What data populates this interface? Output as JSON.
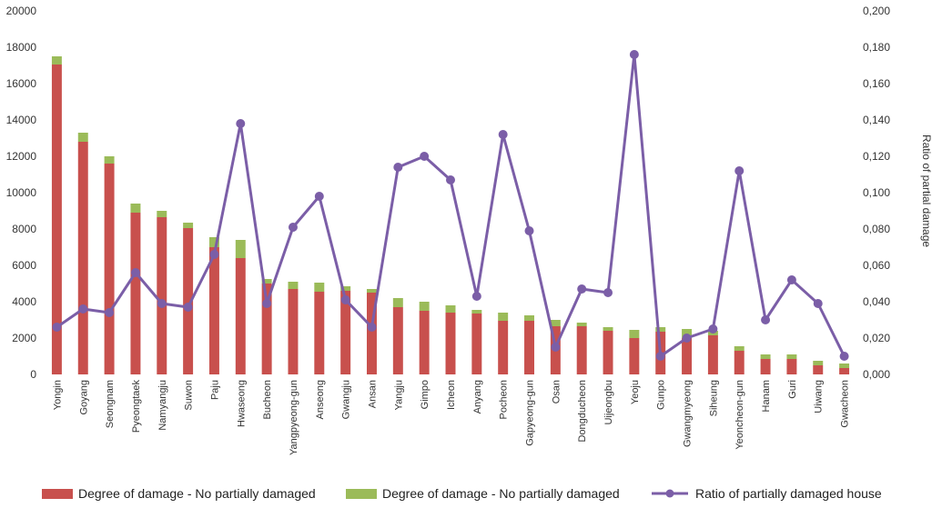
{
  "chart_data": {
    "type": "bar",
    "stacked": true,
    "categories": [
      "Yongin",
      "Goyang",
      "Seongnam",
      "Pyeongtaek",
      "Namyangju",
      "Suwon",
      "Paju",
      "Hwaseong",
      "Bucheon",
      "Yangpyeong-gun",
      "Anseong",
      "Gwangju",
      "Ansan",
      "Yangju",
      "Gimpo",
      "Icheon",
      "Anyang",
      "Pocheon",
      "Gapyeong-gun",
      "Osan",
      "Dongducheon",
      "Uijeongbu",
      "Yeoju",
      "Gunpo",
      "Gwangmyeong",
      "Siheung",
      "Yeoncheon-gun",
      "Hanam",
      "Guri",
      "Uiwang",
      "Gwacheon"
    ],
    "series": [
      {
        "name": "Degree of damage - No partially damaged",
        "color": "#c8504d",
        "values": [
          17050,
          12800,
          11600,
          8900,
          8650,
          8050,
          7000,
          6400,
          5000,
          4700,
          4550,
          4600,
          4500,
          3700,
          3500,
          3400,
          3350,
          2950,
          2950,
          2650,
          2650,
          2400,
          2000,
          2350,
          2000,
          2150,
          1300,
          850,
          850,
          500,
          350
        ]
      },
      {
        "name": "Degree of damage - No partially damaged",
        "color": "#9bbb59",
        "values": [
          450,
          500,
          400,
          500,
          350,
          300,
          550,
          1000,
          250,
          400,
          500,
          250,
          200,
          500,
          500,
          400,
          200,
          450,
          300,
          350,
          200,
          200,
          450,
          250,
          500,
          250,
          250,
          250,
          250,
          250,
          250
        ]
      }
    ],
    "line": {
      "name": "Ratio of partially damaged house",
      "color": "#7b5ea7",
      "values": [
        0.026,
        0.036,
        0.034,
        0.056,
        0.039,
        0.037,
        0.066,
        0.138,
        0.039,
        0.081,
        0.098,
        0.041,
        0.026,
        0.114,
        0.12,
        0.107,
        0.043,
        0.132,
        0.079,
        0.015,
        0.047,
        0.045,
        0.176,
        0.01,
        0.02,
        0.025,
        0.112,
        0.03,
        0.052,
        0.039,
        0.01
      ]
    },
    "y_left": {
      "min": 0,
      "max": 20000,
      "ticks": [
        "0",
        "2000",
        "4000",
        "6000",
        "8000",
        "10000",
        "12000",
        "14000",
        "16000",
        "18000",
        "20000"
      ]
    },
    "y_right": {
      "min": 0,
      "max": 0.2,
      "label": "Ratio of partial damage",
      "ticks": [
        "0,000",
        "0,020",
        "0,040",
        "0,060",
        "0,080",
        "0,100",
        "0,120",
        "0,140",
        "0,160",
        "0,180",
        "0,200"
      ]
    },
    "legend": {
      "position": "bottom"
    },
    "grid": false
  }
}
